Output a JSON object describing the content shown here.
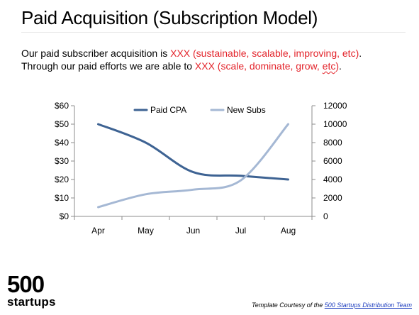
{
  "slide": {
    "title": "Paid Acquisition (Subscription Model)",
    "intro": {
      "line1_prefix": "Our paid subscriber acquisition is ",
      "line1_xxx": "XXX",
      "line1_paren": "(sustainable, scalable, improving, etc)",
      "line1_suffix": ".",
      "line2_prefix": "Through our paid efforts we are able to ",
      "line2_xxx": "XXX",
      "line2_paren_prefix": "(scale, dominate, grow, ",
      "line2_etc": "etc",
      "line2_paren_suffix": ")",
      "line2_suffix": "."
    }
  },
  "chart_data": {
    "type": "line",
    "categories": [
      "Apr",
      "May",
      "Jun",
      "Jul",
      "Aug"
    ],
    "series": [
      {
        "name": "Paid CPA",
        "axis": "left",
        "color": "#3e6393",
        "values": [
          50,
          40,
          24,
          22,
          20
        ]
      },
      {
        "name": "New Subs",
        "axis": "right",
        "color": "#a5b8d4",
        "values": [
          1000,
          2400,
          2900,
          3900,
          10000
        ]
      }
    ],
    "y_left": {
      "ticks": [
        "$0",
        "$10",
        "$20",
        "$30",
        "$40",
        "$50",
        "$60"
      ],
      "ylim": [
        0,
        60
      ]
    },
    "y_right": {
      "ticks": [
        "0",
        "2000",
        "4000",
        "6000",
        "8000",
        "10000",
        "12000"
      ],
      "ylim": [
        0,
        12000
      ]
    },
    "legend_position": "top-center",
    "grid": false
  },
  "footer": {
    "logo_number": "500",
    "logo_word": "startups",
    "credit_prefix": "Template Courtesy of the ",
    "credit_link": "500 Startups Distribution Team"
  }
}
